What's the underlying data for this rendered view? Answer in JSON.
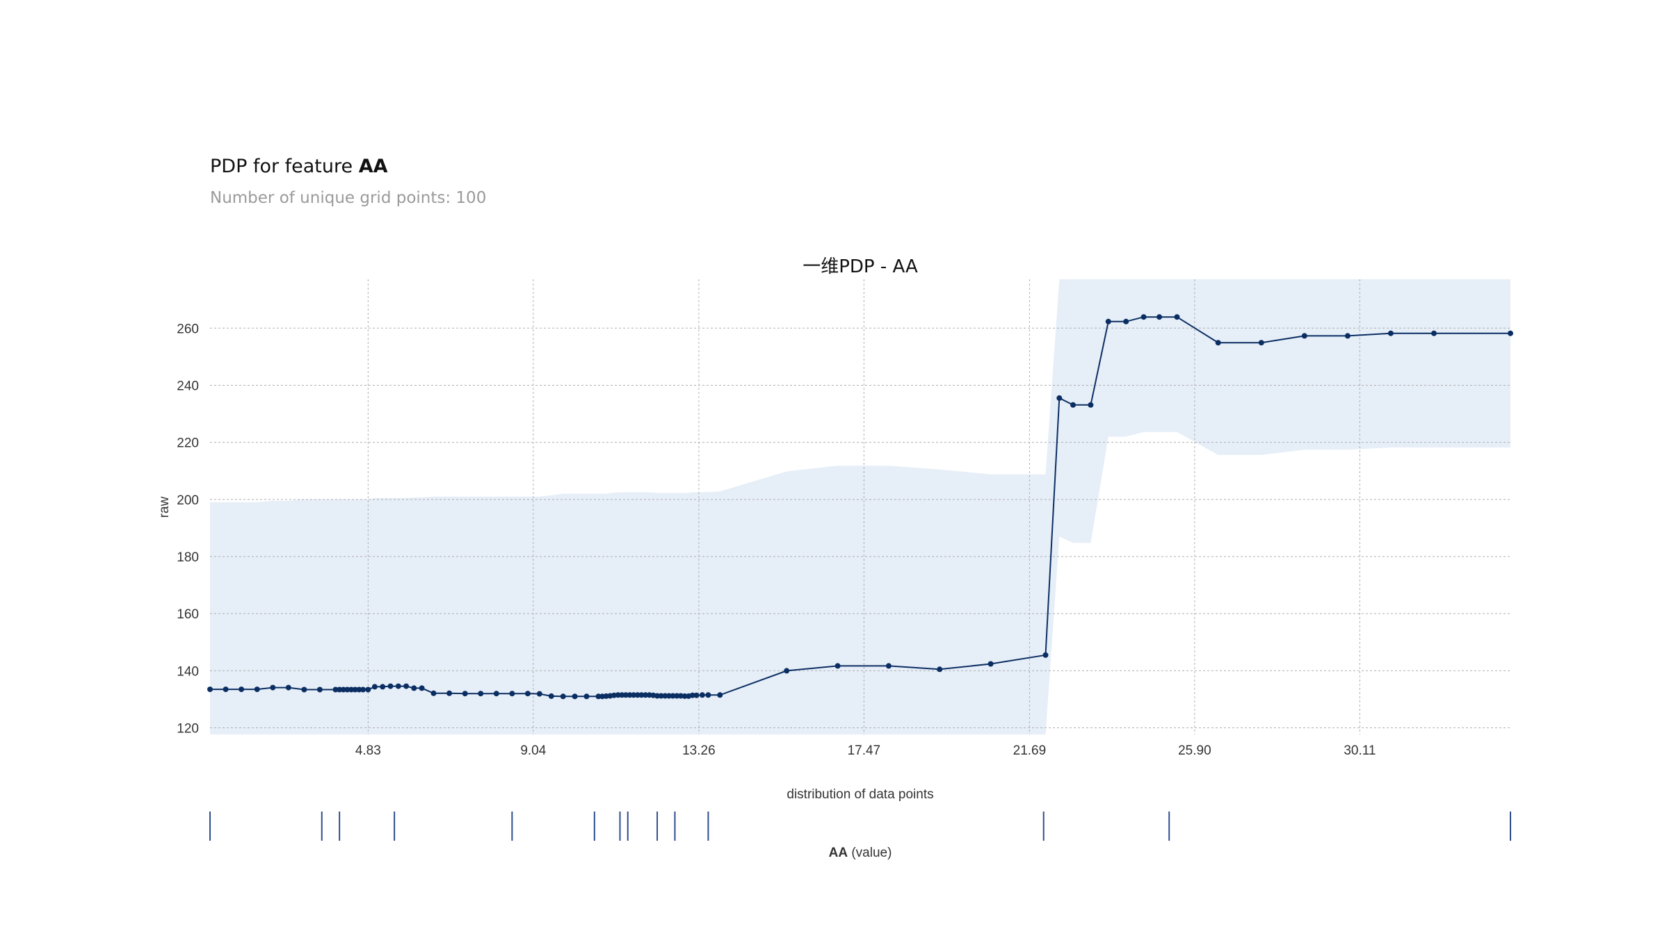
{
  "header": {
    "title_prefix": "PDP for feature ",
    "feature": "AA",
    "subtitle": "Number of unique grid points: 100"
  },
  "colors": {
    "line": "#0b2e62",
    "band": "#e6eef8",
    "grid": "#b0b0b0",
    "rug": "#2d4e8e"
  },
  "chart_data": {
    "type": "line",
    "title": "一维PDP - AA",
    "ylabel": "raw",
    "xlabel_feature": "AA",
    "xlabel_suffix": " (value)",
    "rug_label": "distribution of data points",
    "xlim": [
      0.8,
      33.95
    ],
    "ylim": [
      117.7,
      277.1
    ],
    "x_ticks": [
      4.83,
      9.04,
      13.26,
      17.47,
      21.69,
      25.9,
      30.11
    ],
    "x_tick_labels": [
      "4.83",
      "9.04",
      "13.26",
      "17.47",
      "21.69",
      "25.90",
      "30.11"
    ],
    "y_ticks": [
      120,
      140,
      160,
      180,
      200,
      220,
      240,
      260
    ],
    "grid": true,
    "series": [
      {
        "x": [
          0.8,
          1.2,
          1.6,
          2.0,
          2.4,
          2.8,
          3.2,
          3.6,
          4.0,
          4.1,
          4.2,
          4.3,
          4.4,
          4.5,
          4.6,
          4.7,
          4.83,
          5.0,
          5.2,
          5.4,
          5.6,
          5.8,
          6.0,
          6.2,
          6.5,
          6.9,
          7.3,
          7.7,
          8.1,
          8.5,
          8.9,
          9.2,
          9.5,
          9.8,
          10.1,
          10.4,
          10.7,
          10.8,
          10.9,
          11.0,
          11.1,
          11.2,
          11.3,
          11.4,
          11.5,
          11.6,
          11.7,
          11.8,
          11.9,
          12.0,
          12.1,
          12.2,
          12.3,
          12.4,
          12.5,
          12.6,
          12.7,
          12.8,
          12.9,
          13.0,
          13.1,
          13.2,
          13.35,
          13.5,
          13.8,
          15.5,
          16.8,
          18.1,
          19.4,
          20.7,
          22.1,
          22.45,
          22.8,
          23.25,
          23.7,
          24.15,
          24.6,
          25.0,
          25.45,
          26.5,
          27.6,
          28.7,
          29.8,
          30.9,
          32.0,
          33.95
        ],
        "y": [
          133.5,
          133.5,
          133.5,
          133.5,
          134.1,
          134.1,
          133.4,
          133.4,
          133.4,
          133.4,
          133.4,
          133.4,
          133.4,
          133.4,
          133.4,
          133.4,
          133.4,
          134.4,
          134.4,
          134.6,
          134.6,
          134.6,
          133.9,
          133.9,
          132.1,
          132.1,
          132.0,
          132.0,
          132.0,
          132.0,
          132.0,
          131.9,
          131.1,
          131.0,
          131.0,
          131.0,
          131.0,
          131.0,
          131.1,
          131.2,
          131.4,
          131.5,
          131.5,
          131.5,
          131.5,
          131.5,
          131.5,
          131.5,
          131.5,
          131.5,
          131.4,
          131.2,
          131.2,
          131.2,
          131.2,
          131.2,
          131.2,
          131.2,
          131.1,
          131.1,
          131.4,
          131.4,
          131.5,
          131.5,
          131.5,
          140.0,
          141.7,
          141.7,
          140.5,
          142.4,
          145.5,
          235.5,
          233.1,
          233.1,
          262.3,
          262.3,
          263.9,
          263.9,
          263.9,
          254.9,
          254.9,
          257.3,
          257.3,
          258.2,
          258.2,
          258.2
        ],
        "band_upper": [
          199.0,
          199.0,
          199.0,
          199.0,
          199.5,
          199.5,
          200.0,
          200.0,
          200.0,
          200.0,
          200.0,
          200.0,
          200.0,
          200.0,
          200.0,
          200.0,
          200.0,
          200.5,
          200.5,
          200.5,
          200.5,
          200.5,
          200.7,
          200.7,
          201.0,
          201.0,
          201.0,
          201.0,
          201.0,
          201.0,
          201.0,
          201.0,
          201.5,
          202.0,
          202.0,
          202.0,
          202.0,
          202.0,
          202.0,
          202.2,
          202.4,
          202.5,
          202.5,
          202.5,
          202.5,
          202.5,
          202.5,
          202.5,
          202.5,
          202.5,
          202.4,
          202.3,
          202.3,
          202.3,
          202.3,
          202.3,
          202.3,
          202.3,
          202.3,
          202.3,
          202.5,
          202.5,
          202.5,
          202.6,
          202.8,
          209.8,
          211.8,
          211.8,
          210.5,
          208.8,
          208.8,
          277.1,
          277.1,
          277.1,
          277.1,
          277.1,
          277.1,
          277.1,
          277.1,
          277.1,
          277.1,
          277.1,
          277.1,
          277.1,
          277.1,
          277.1
        ],
        "band_lower": [
          117.7,
          117.7,
          117.7,
          117.7,
          117.7,
          117.7,
          117.7,
          117.7,
          117.7,
          117.7,
          117.7,
          117.7,
          117.7,
          117.7,
          117.7,
          117.7,
          117.7,
          117.7,
          117.7,
          117.7,
          117.7,
          117.7,
          117.7,
          117.7,
          117.7,
          117.7,
          117.7,
          117.7,
          117.7,
          117.7,
          117.7,
          117.7,
          117.7,
          117.7,
          117.7,
          117.7,
          117.7,
          117.7,
          117.7,
          117.7,
          117.7,
          117.7,
          117.7,
          117.7,
          117.7,
          117.7,
          117.7,
          117.7,
          117.7,
          117.7,
          117.7,
          117.7,
          117.7,
          117.7,
          117.7,
          117.7,
          117.7,
          117.7,
          117.7,
          117.7,
          117.7,
          117.7,
          117.7,
          117.7,
          117.7,
          117.7,
          117.7,
          117.7,
          117.7,
          117.7,
          117.7,
          187.0,
          184.8,
          184.8,
          222.0,
          222.0,
          223.6,
          223.6,
          223.6,
          215.6,
          215.6,
          217.4,
          217.4,
          218.2,
          218.2,
          218.2
        ]
      }
    ],
    "rug_x": [
      0.8,
      3.65,
      4.1,
      5.5,
      8.5,
      10.6,
      11.25,
      11.45,
      12.2,
      12.65,
      13.5,
      22.05,
      25.25,
      33.95
    ]
  }
}
